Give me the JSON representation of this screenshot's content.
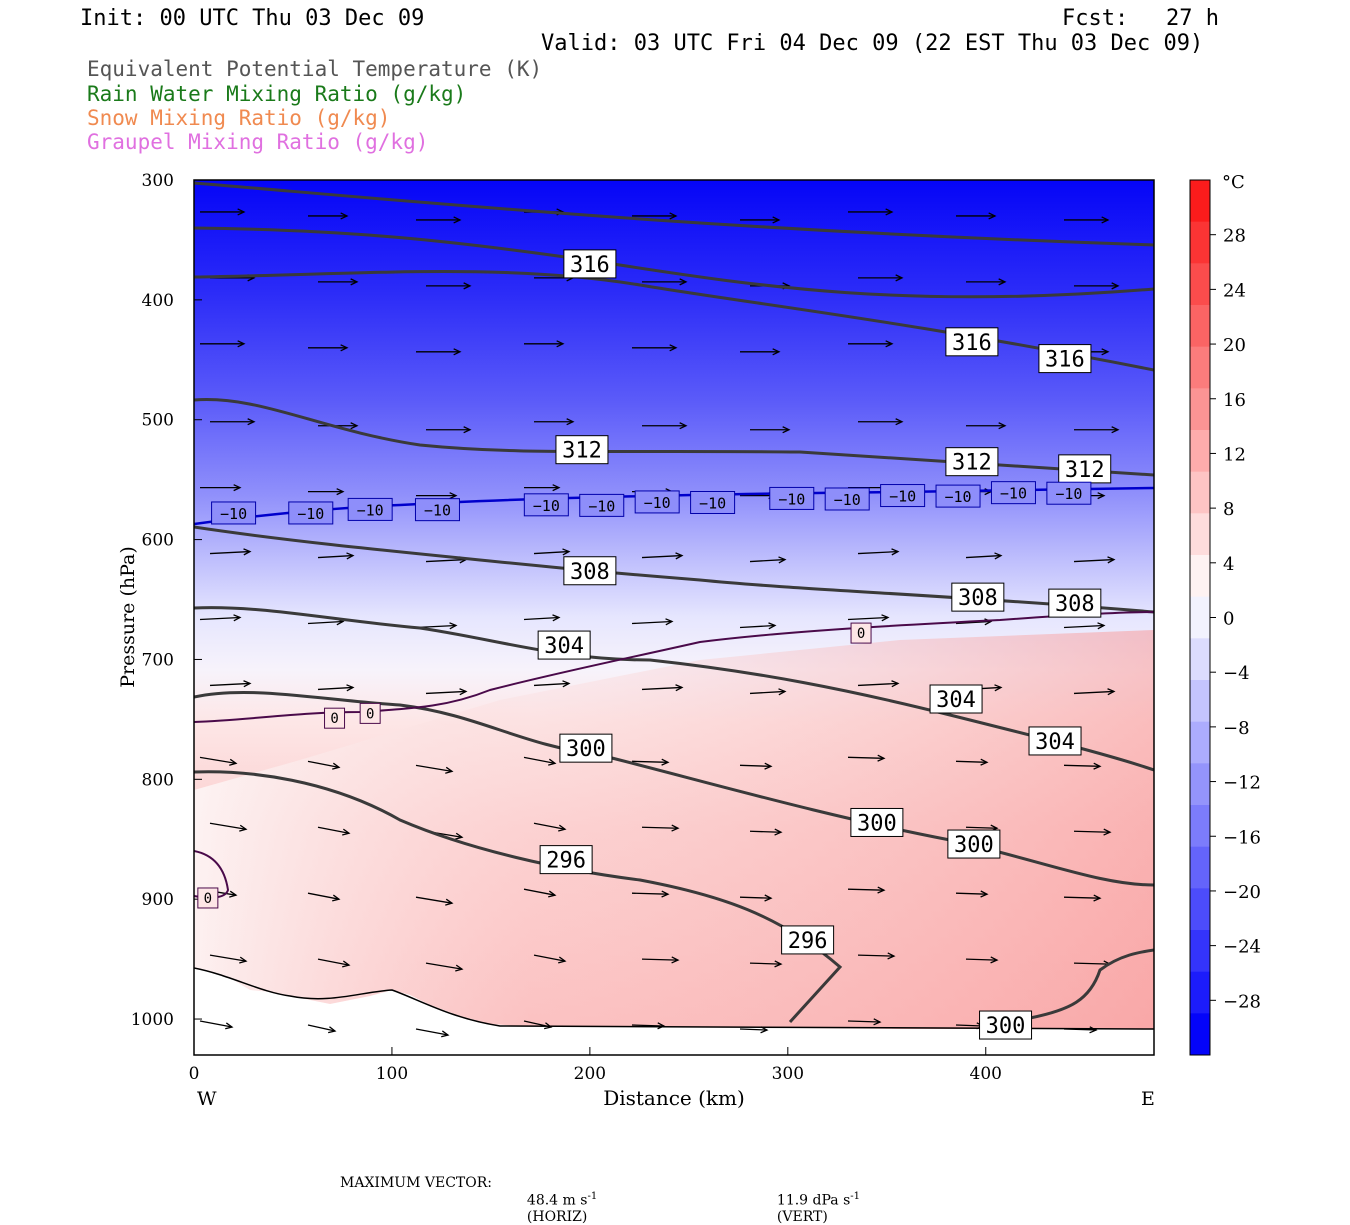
{
  "header": {
    "init": "Init: 00 UTC Thu 03 Dec 09",
    "fcst_label": "Fcst:",
    "fcst_value": "27 h",
    "valid": "Valid: 03 UTC Fri 04 Dec 09 (22 EST Thu 03 Dec 09)"
  },
  "legend": [
    {
      "label": "Equivalent Potential Temperature (K)",
      "color": "#555555"
    },
    {
      "label": "Rain Water Mixing Ratio (g/kg)",
      "color": "#1a7a1a"
    },
    {
      "label": "Snow Mixing Ratio (g/kg)",
      "color": "#f08a50"
    },
    {
      "label": "Graupel Mixing Ratio (g/kg)",
      "color": "#e070e0"
    }
  ],
  "footer": {
    "max_vector_label": "MAXIMUM VECTOR:",
    "horiz": "48.4 m s",
    "horiz_exp": "-1",
    "horiz_tag": "(HORIZ)",
    "vert": "11.9 dPa s",
    "vert_exp": "-1",
    "vert_tag": "(VERT)"
  },
  "chart_data": {
    "type": "cross-section",
    "xlabel": "Distance (km)",
    "ylabel": "Pressure (hPa)",
    "x_ticks": [
      0,
      100,
      200,
      300,
      400
    ],
    "x_range": [
      0,
      485
    ],
    "y_ticks": [
      300,
      400,
      500,
      600,
      700,
      800,
      900,
      1000
    ],
    "y_range": [
      300,
      1030
    ],
    "y_inverted": true,
    "left_end_label": "W",
    "right_end_label": "E",
    "colorbar": {
      "unit": "°C",
      "tick_labels": [
        "28",
        "24",
        "20",
        "16",
        "12",
        "8",
        "4",
        "0",
        "−4",
        "−8",
        "−12",
        "−16",
        "−20",
        "−24",
        "−28"
      ],
      "levels": [
        32,
        28,
        24,
        20,
        16,
        12,
        8,
        4,
        0,
        -4,
        -8,
        -12,
        -16,
        -20,
        -24,
        -28,
        -32
      ],
      "colors": [
        "#fb1c1c",
        "#fb3434",
        "#fb4c4c",
        "#fb6464",
        "#fc7c7c",
        "#fc9494",
        "#fdacac",
        "#fdc4c4",
        "#fedcdc",
        "#fef2f2",
        "#f2f2fe",
        "#dcdcfe",
        "#c4c4fd",
        "#acacfd",
        "#9494fc",
        "#7c7cfc",
        "#6464fb",
        "#4c4cfb",
        "#3434fb",
        "#1c1cfb",
        "#0404fa"
      ]
    },
    "theta_e_contours": [
      {
        "value": "316",
        "labels": [
          [
            200,
            370
          ],
          [
            393,
            435
          ],
          [
            440,
            449
          ]
        ]
      },
      {
        "value": "312",
        "labels": [
          [
            196,
            525
          ],
          [
            393,
            535
          ],
          [
            450,
            541
          ]
        ]
      },
      {
        "value": "308",
        "labels": [
          [
            200,
            626
          ],
          [
            396,
            648
          ],
          [
            445,
            653
          ]
        ]
      },
      {
        "value": "304",
        "labels": [
          [
            187,
            688
          ],
          [
            385,
            733
          ],
          [
            435,
            768
          ]
        ]
      },
      {
        "value": "300",
        "labels": [
          [
            198,
            774
          ],
          [
            345,
            836
          ],
          [
            394,
            854
          ],
          [
            410,
            1005
          ]
        ]
      },
      {
        "value": "296",
        "labels": [
          [
            188,
            867
          ],
          [
            310,
            934
          ]
        ]
      }
    ],
    "temperature_contour_labels": {
      "minus10": "−10",
      "zero": "0"
    },
    "minus10_label_positions": [
      20,
      59,
      89,
      123,
      178,
      206,
      234,
      262,
      302,
      330,
      358,
      386,
      414,
      442
    ],
    "zero_label_positions": [
      [
        71,
        749
      ],
      [
        89,
        745
      ],
      [
        7,
        899
      ],
      [
        337,
        678
      ]
    ]
  }
}
